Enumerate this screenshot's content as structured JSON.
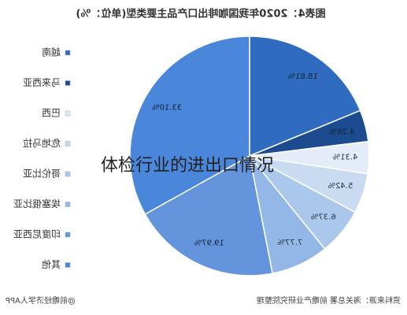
{
  "caption": "体检行业的进出口情况",
  "chart_data": {
    "type": "pie",
    "title": "图表4：2020年我国咖啡出口产品主要类型(单位：%)",
    "source": "资料来源：海关总署 前瞻产业研究院整理",
    "brand": "@前瞻经济学人APP",
    "categories": [
      "越南",
      "马来西亚",
      "巴西",
      "危地马拉",
      "哥伦比亚",
      "埃塞俄比亚",
      "印度尼西亚",
      "其他"
    ],
    "values": [
      18.81,
      4.26,
      4.31,
      5.42,
      6.37,
      7.77,
      19.97,
      33.1
    ],
    "value_labels": [
      "18.81%",
      "4.26%",
      "4.31%",
      "5.42%",
      "6.37%",
      "7.77%",
      "19.97%",
      "33.10%"
    ],
    "colors": [
      "#2f6cc0",
      "#1d4b8f",
      "#e3ecf8",
      "#c9dbf1",
      "#abc8ec",
      "#93b7e6",
      "#6495dc",
      "#4a86da"
    ]
  }
}
